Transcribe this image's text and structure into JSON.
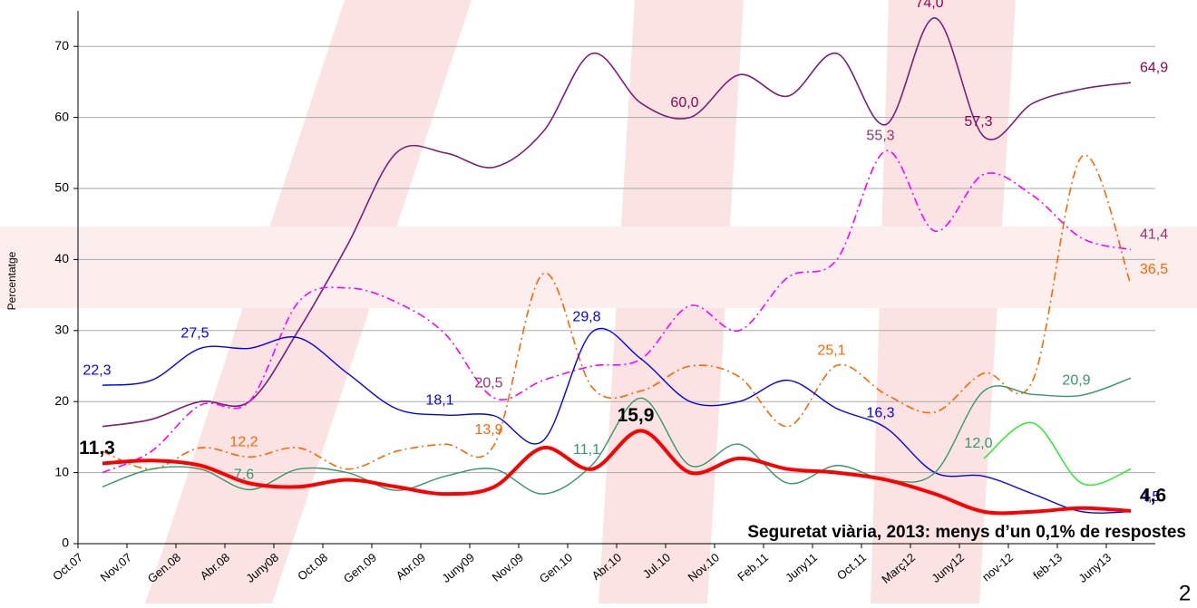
{
  "chart_data": {
    "type": "line",
    "annotation": "Seguretat viària, 2013: menys d’un 0,1% de respostes",
    "y_label": "Percentatge",
    "page_number": "2",
    "categories": [
      "Oct.07",
      "Nov.07",
      "Gen.08",
      "Abr.08",
      "Juny08",
      "Oct.08",
      "Gen.09",
      "Abr.09",
      "Juny09",
      "Nov.09",
      "Gen.10",
      "Abr.10",
      "Jul.10",
      "Nov.10",
      "Feb.11",
      "Juny11",
      "Oct.11",
      "Març12",
      "Juny12",
      "nov-12",
      "feb-13",
      "Juny13"
    ],
    "ylim": [
      0,
      75
    ],
    "yticks": [
      0,
      10,
      20,
      30,
      40,
      50,
      60,
      70
    ],
    "grid": true,
    "series": [
      {
        "color": "#7b1f7b",
        "style": "solid",
        "width": 1.6,
        "label_color": "#99004c",
        "values": [
          16.5,
          17.5,
          20,
          20,
          30,
          42,
          55,
          55,
          53,
          58,
          69,
          62,
          60.0,
          66,
          63,
          69,
          59,
          74.0,
          57.3,
          62,
          64,
          64.9
        ],
        "value_labels": [
          null,
          null,
          null,
          null,
          null,
          null,
          null,
          null,
          null,
          null,
          null,
          null,
          "60,0",
          null,
          null,
          null,
          null,
          "74,0",
          "57,3",
          null,
          null,
          "64,9"
        ]
      },
      {
        "color": "#ff00ff",
        "style": "dashdot",
        "width": 1.6,
        "label_color": "#99336b",
        "values": [
          10,
          13,
          19.5,
          20,
          34,
          36,
          34,
          29.5,
          20.5,
          23,
          25,
          26,
          33.5,
          30,
          37.5,
          40,
          55.3,
          44,
          52,
          49,
          43,
          41.4
        ],
        "value_labels": [
          null,
          null,
          null,
          null,
          null,
          null,
          null,
          null,
          "20,5",
          null,
          null,
          null,
          null,
          null,
          null,
          null,
          "55,3",
          null,
          null,
          null,
          null,
          "41,4"
        ]
      },
      {
        "color": "#ff6600",
        "style": "dashdot",
        "width": 1.6,
        "label_color": "#ff6600",
        "values": [
          13,
          10.5,
          13.5,
          12.2,
          13.5,
          10.5,
          13,
          14,
          13.9,
          38,
          22,
          21.5,
          25,
          23.5,
          16.5,
          25.1,
          21,
          18.5,
          24,
          23,
          54.5,
          36.5
        ],
        "value_labels": [
          null,
          null,
          null,
          "12,2",
          null,
          null,
          null,
          null,
          "13,9",
          null,
          null,
          null,
          null,
          null,
          null,
          "25,1",
          null,
          null,
          null,
          null,
          null,
          "36,5"
        ]
      },
      {
        "color": "#0000ff",
        "style": "solid",
        "width": 1.4,
        "label_color": "#0000ff",
        "values": [
          22.3,
          23,
          27.5,
          27.5,
          29,
          24,
          19,
          18.1,
          18,
          14.5,
          29.8,
          26,
          20,
          20,
          23,
          19,
          16.3,
          10,
          9.5,
          7,
          4.5,
          4.5
        ],
        "value_labels": [
          "22,3",
          null,
          "27,5",
          null,
          null,
          null,
          null,
          "18,1",
          null,
          null,
          "29,8",
          null,
          null,
          null,
          null,
          null,
          "16,3",
          null,
          null,
          null,
          null,
          "4,5"
        ]
      },
      {
        "color": "#339966",
        "style": "solid",
        "width": 1.4,
        "label_color": "#339966",
        "values": [
          8,
          10.5,
          10.5,
          7.6,
          10.5,
          10,
          7.5,
          9.5,
          10.5,
          7,
          11.1,
          20.5,
          11,
          14,
          8.5,
          11,
          9,
          10,
          21.5,
          21,
          20.9,
          23.3
        ],
        "value_labels": [
          null,
          null,
          null,
          "7,6",
          null,
          null,
          null,
          null,
          null,
          null,
          "11,1",
          null,
          null,
          null,
          null,
          null,
          null,
          null,
          null,
          null,
          "20,9",
          null
        ]
      },
      {
        "color": "#33ee33",
        "style": "solid",
        "width": 1.6,
        "label_color": "#339966",
        "values": [
          null,
          null,
          null,
          null,
          null,
          null,
          null,
          null,
          null,
          null,
          null,
          null,
          null,
          null,
          null,
          null,
          null,
          null,
          12.0,
          17,
          8.5,
          10.5
        ],
        "value_labels": [
          null,
          null,
          null,
          null,
          null,
          null,
          null,
          null,
          null,
          null,
          null,
          null,
          null,
          null,
          null,
          null,
          null,
          null,
          "12,0",
          null,
          null,
          null
        ]
      },
      {
        "color": "#ff0000",
        "style": "solid",
        "width": 4,
        "label_color": "#000000",
        "label_bold": true,
        "values": [
          11.3,
          11.7,
          11,
          8.5,
          8,
          9,
          8,
          7,
          8,
          13.5,
          10.5,
          15.9,
          10,
          12,
          10.5,
          10,
          9,
          7,
          4.5,
          4.5,
          5,
          4.6
        ],
        "value_labels": [
          "11,3",
          null,
          null,
          null,
          null,
          null,
          null,
          null,
          null,
          null,
          null,
          "15,9",
          null,
          null,
          null,
          null,
          null,
          null,
          null,
          null,
          null,
          "4,6"
        ]
      }
    ]
  }
}
